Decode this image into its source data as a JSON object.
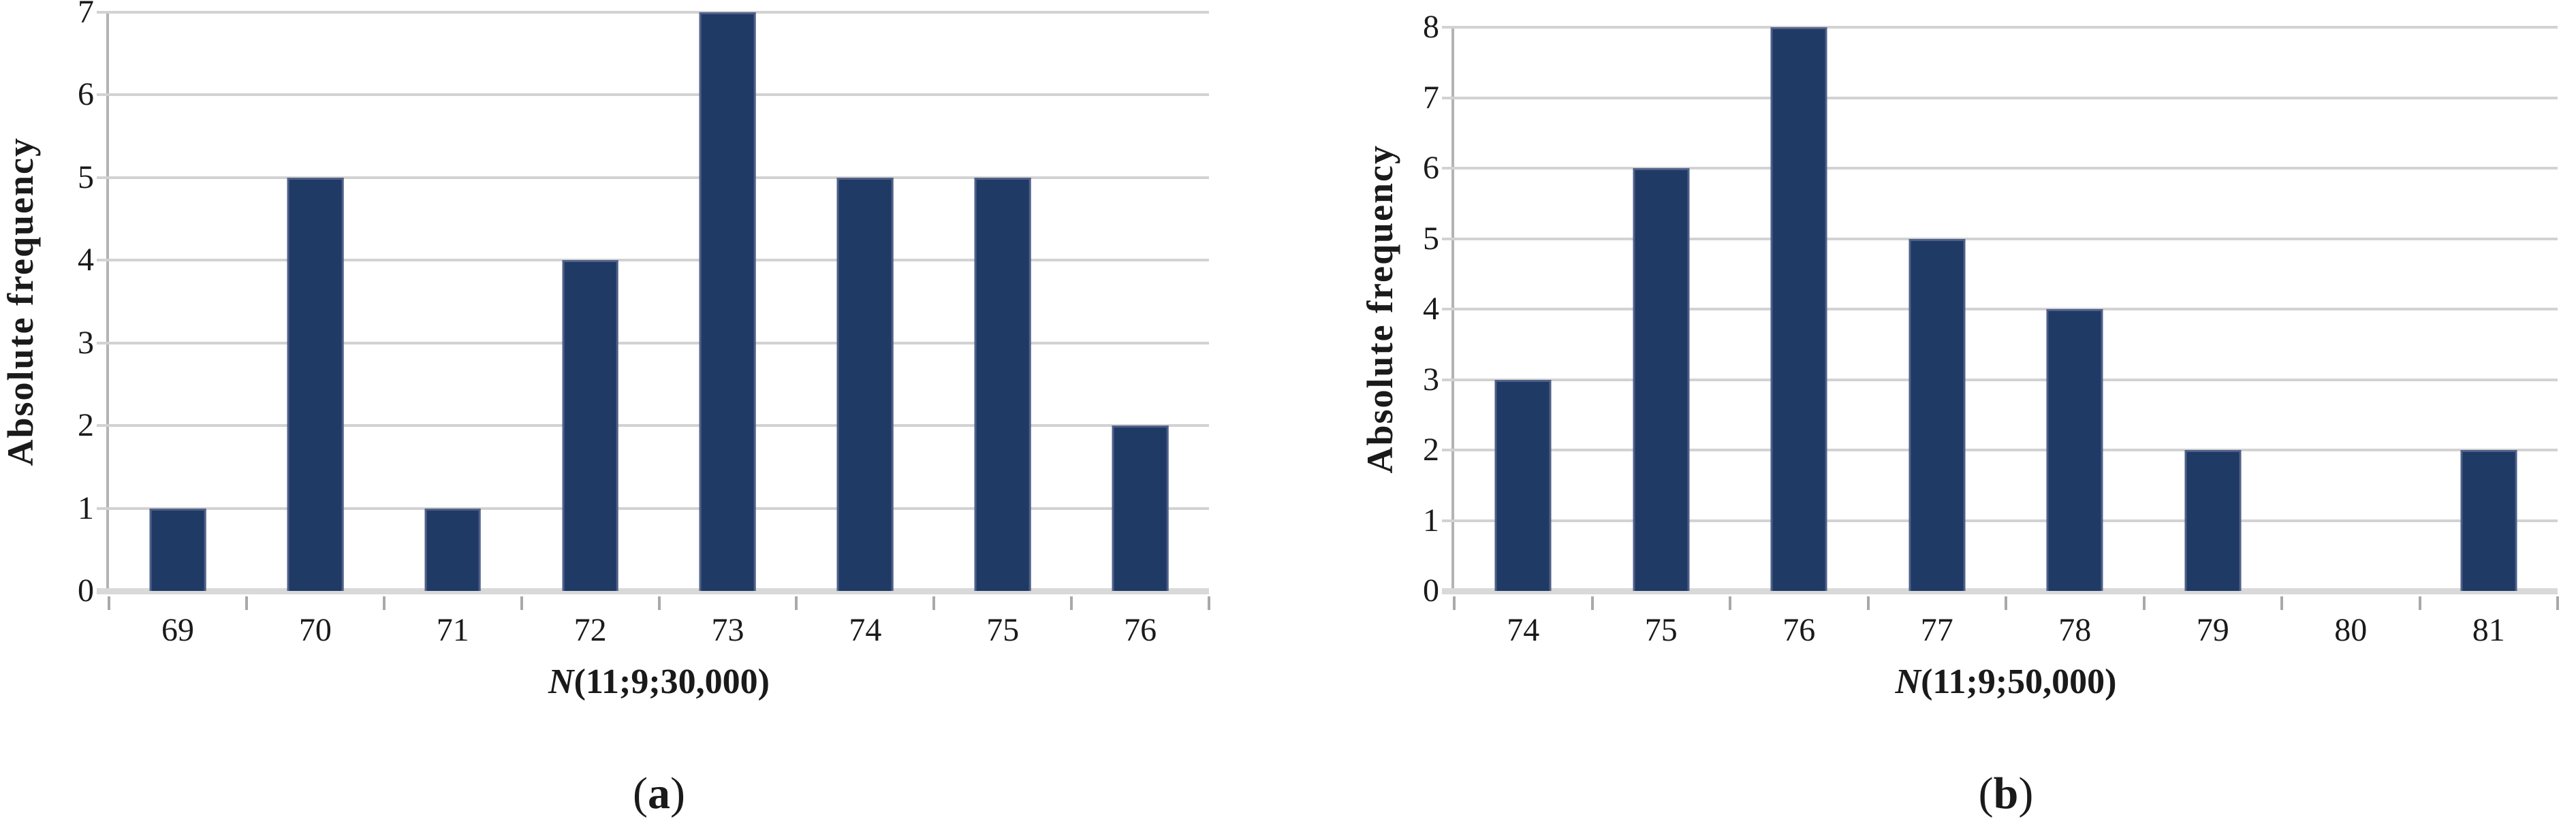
{
  "figure": {
    "background": "#ffffff",
    "panels": [
      {
        "caption": {
          "open": "(",
          "letter": "a",
          "close": ")"
        }
      },
      {
        "caption": {
          "open": "(",
          "letter": "b",
          "close": ")"
        }
      }
    ]
  },
  "chart_data": [
    {
      "type": "bar",
      "title": "",
      "categories": [
        "69",
        "70",
        "71",
        "72",
        "73",
        "74",
        "75",
        "76"
      ],
      "values": [
        1,
        5,
        1,
        4,
        7,
        5,
        5,
        2
      ],
      "xlabel": "N(11;9;30,000)",
      "xlabel_italic_prefix": "N",
      "xlabel_rest": "(11;9;30,000)",
      "ylabel": "Absolute frequency",
      "ylim": [
        0,
        7
      ],
      "yticks": [
        0,
        1,
        2,
        3,
        4,
        5,
        6,
        7
      ],
      "grid": "horizontal",
      "legend": "none",
      "bar_color": "#1f3a64",
      "gridline_color": "#d2d2d2"
    },
    {
      "type": "bar",
      "title": "",
      "categories": [
        "74",
        "75",
        "76",
        "77",
        "78",
        "79",
        "80",
        "81"
      ],
      "values": [
        3,
        6,
        8,
        5,
        4,
        2,
        0,
        2
      ],
      "xlabel": "N(11;9;50,000)",
      "xlabel_italic_prefix": "N",
      "xlabel_rest": "(11;9;50,000)",
      "ylabel": "Absolute frequency",
      "ylim": [
        0,
        8
      ],
      "yticks": [
        0,
        1,
        2,
        3,
        4,
        5,
        6,
        7,
        8
      ],
      "grid": "horizontal",
      "legend": "none",
      "bar_color": "#1f3a64",
      "gridline_color": "#d2d2d2"
    }
  ]
}
